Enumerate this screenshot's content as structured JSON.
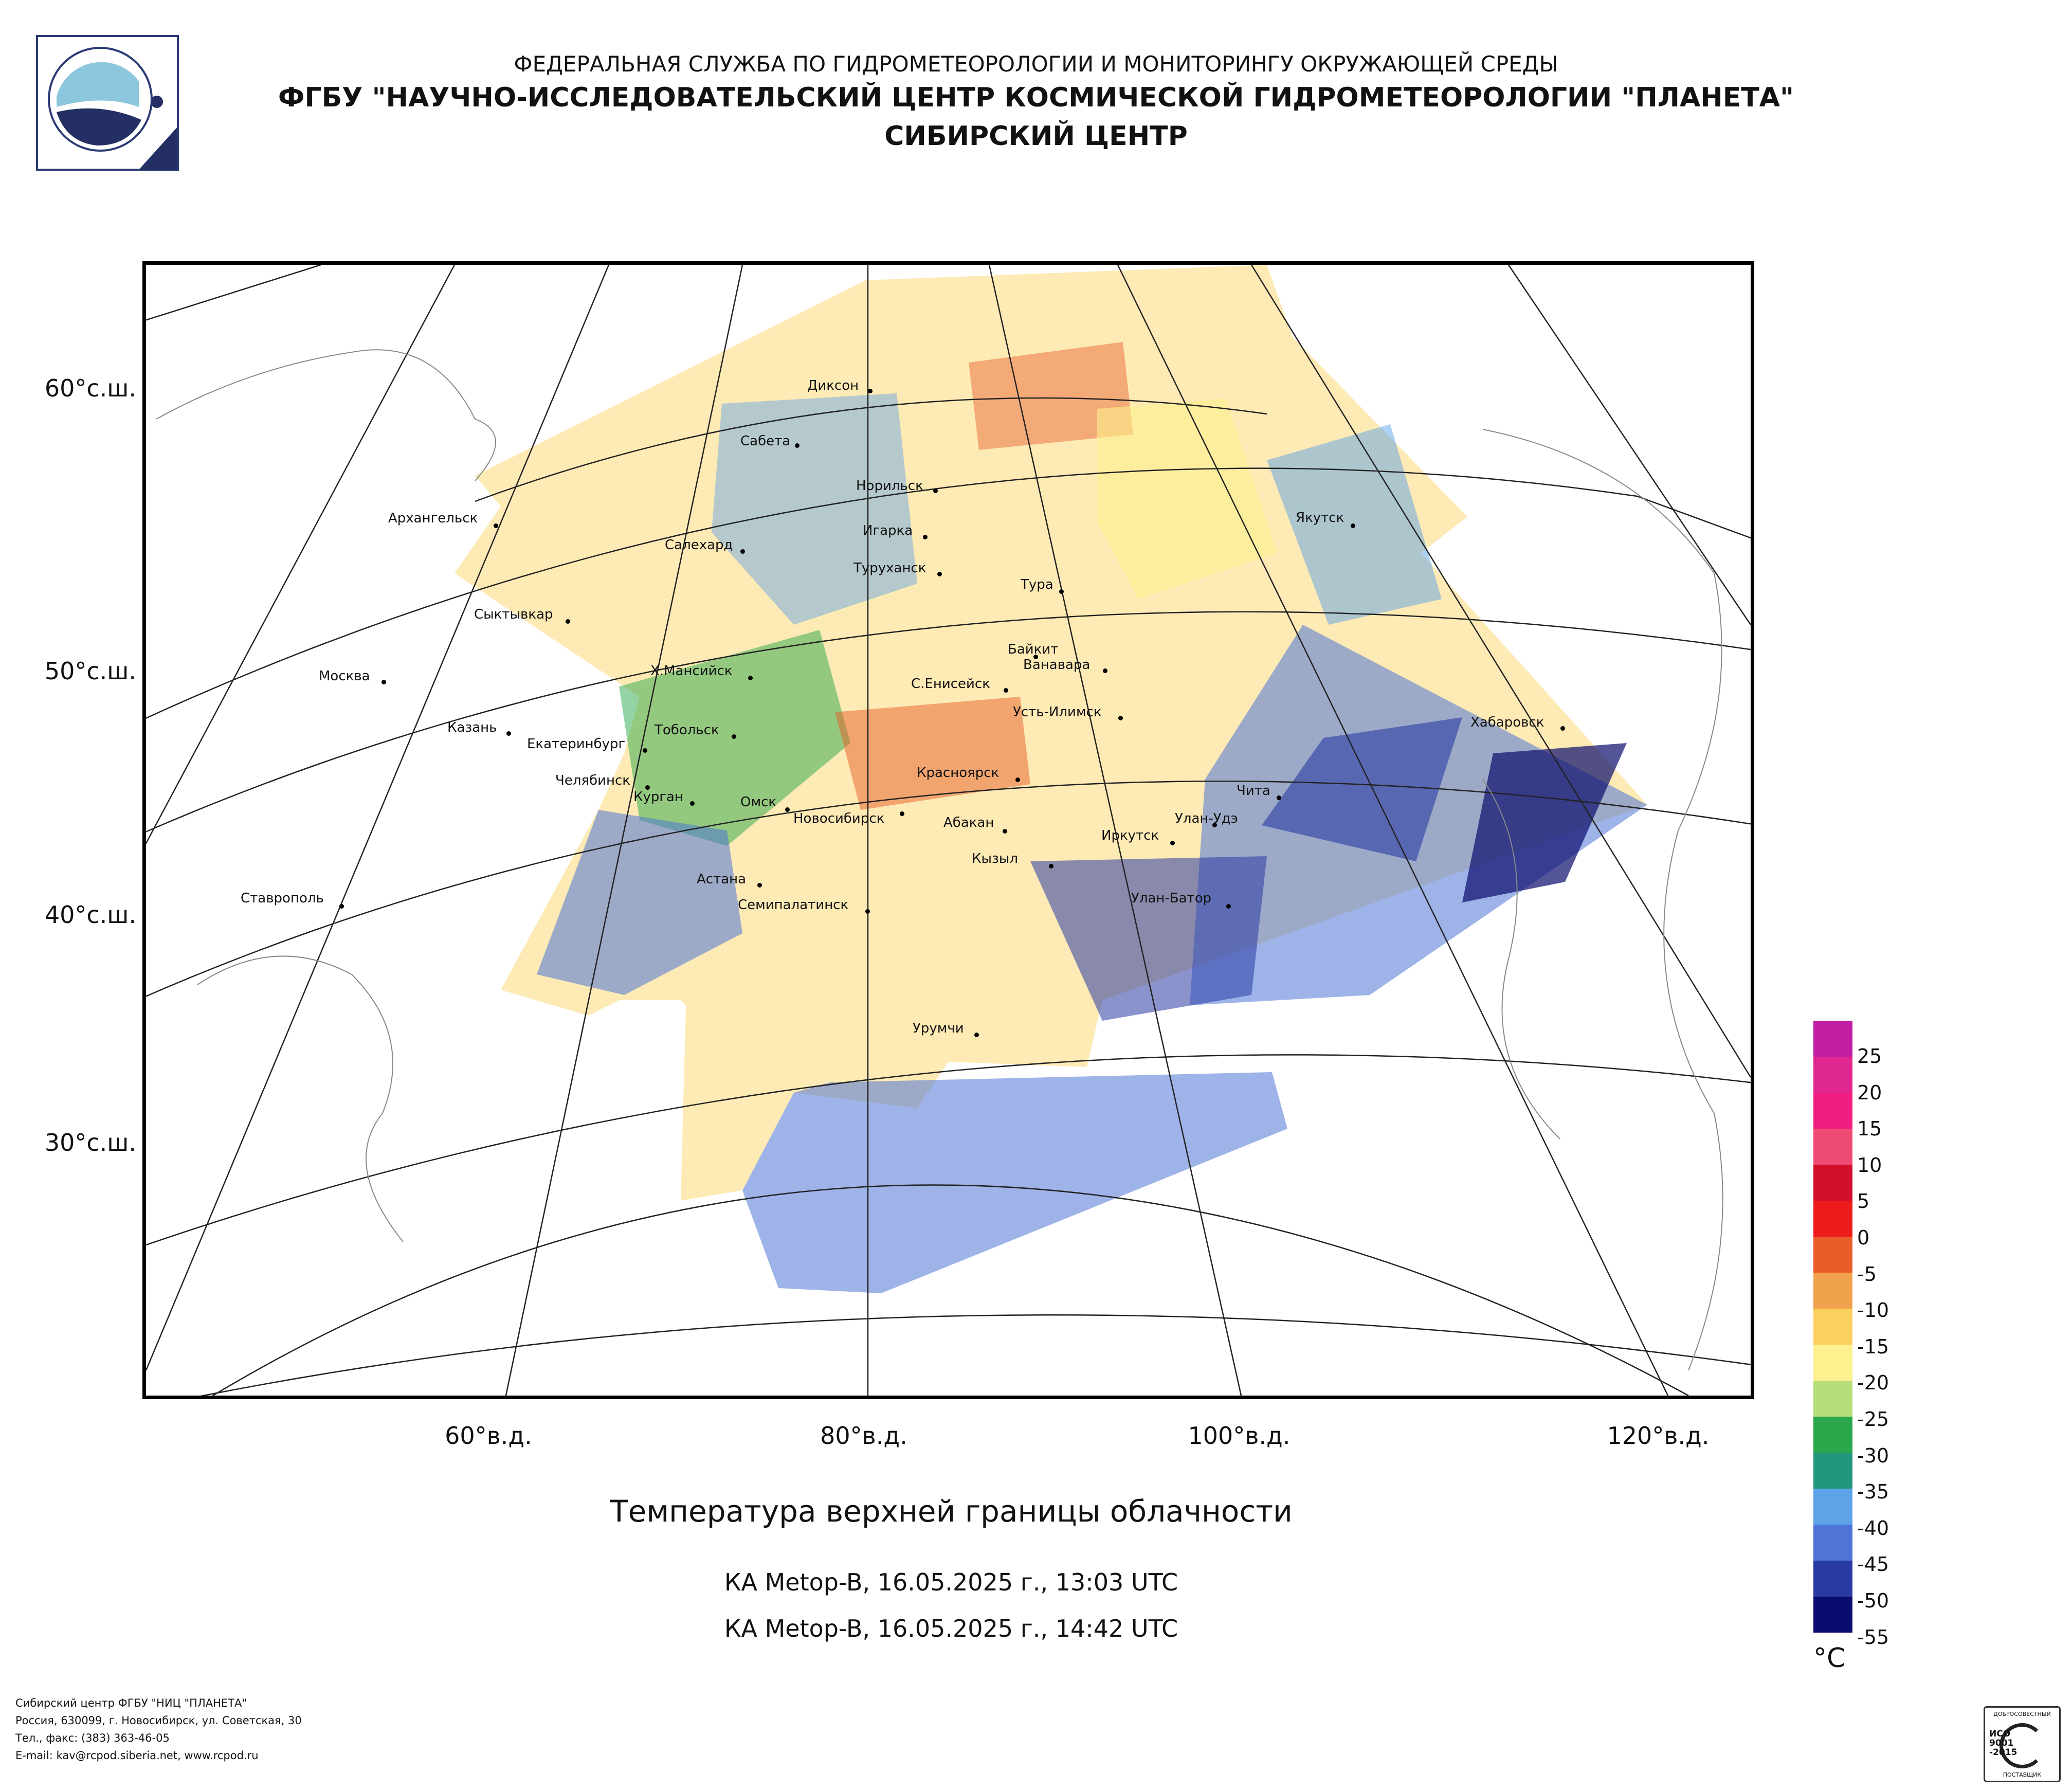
{
  "header": {
    "line1": "ФЕДЕРАЛЬНАЯ СЛУЖБА ПО ГИДРОМЕТЕОРОЛОГИИ И МОНИТОРИНГУ ОКРУЖАЮЩЕЙ СРЕДЫ",
    "line2": "ФГБУ \"НАУЧНО-ИССЛЕДОВАТЕЛЬСКИЙ ЦЕНТР КОСМИЧЕСКОЙ ГИДРОМЕТЕОРОЛОГИИ \"ПЛАНЕТА\"",
    "line3": "СИБИРСКИЙ ЦЕНТР"
  },
  "map": {
    "lat_labels": [
      "60°с.ш.",
      "50°с.ш.",
      "40°с.ш.",
      "30°с.ш."
    ],
    "lon_labels": [
      "60°в.д.",
      "80°в.д.",
      "100°в.д.",
      "120°в.д."
    ],
    "cities": [
      "Диксон",
      "Сабета",
      "Норильск",
      "Игарка",
      "Туруханск",
      "Салехард",
      "Архангельск",
      "Тура",
      "Якутск",
      "Сыктывкар",
      "Байкит",
      "Ванавара",
      "Х.Мансийск",
      "С.Енисейск",
      "Москва",
      "Усть-Илимск",
      "Казань",
      "Тобольск",
      "Екатеринбург",
      "Хабаровск",
      "Челябинск",
      "Курган",
      "Красноярск",
      "Чита",
      "Омск",
      "Новосибирск",
      "Абакан",
      "Улан-Удэ",
      "Иркутск",
      "Кызыл",
      "Астана",
      "Улан-Батор",
      "Ставрополь",
      "Семипалатинск",
      "Урумчи"
    ]
  },
  "caption": {
    "title": "Температура верхней границы облачности",
    "pass1": "КА Metop-B, 16.05.2025 г., 13:03 UTC",
    "pass2": "КА Metop-B, 16.05.2025 г., 14:42 UTC"
  },
  "legend": {
    "unit": "°C",
    "labels": [
      "25",
      "20",
      "15",
      "10",
      "5",
      "0",
      "-5",
      "-10",
      "-15",
      "-20",
      "-25",
      "-30",
      "-35",
      "-40",
      "-45",
      "-50",
      "-55"
    ],
    "colors": [
      "#c21ea4",
      "#e0278f",
      "#f01e82",
      "#ef4a73",
      "#d0102a",
      "#ee1b1b",
      "#e85d2a",
      "#f0a24c",
      "#fbd05c",
      "#fdf08f",
      "#b5dd7a",
      "#2aa74a",
      "#23967e",
      "#5ea2e8",
      "#4f74d6",
      "#2a3aa3",
      "#0b0d6e"
    ]
  },
  "footer": {
    "line1": "Сибирский центр ФГБУ \"НИЦ \"ПЛАНЕТА\"",
    "line2": "Россия, 630099, г. Новосибирск, ул. Советская, 30",
    "line3": "Тел., факс: (383) 363-46-05",
    "line4": "E-mail: kav@rcpod.siberia.net, www.rcpod.ru"
  },
  "cert": {
    "top": "ДОБРОСОВЕСТНЫЙ",
    "mid1": "ИСО",
    "mid2": "9001",
    "mid3": "-2015",
    "bottom": "ПОСТАВЩИК"
  }
}
